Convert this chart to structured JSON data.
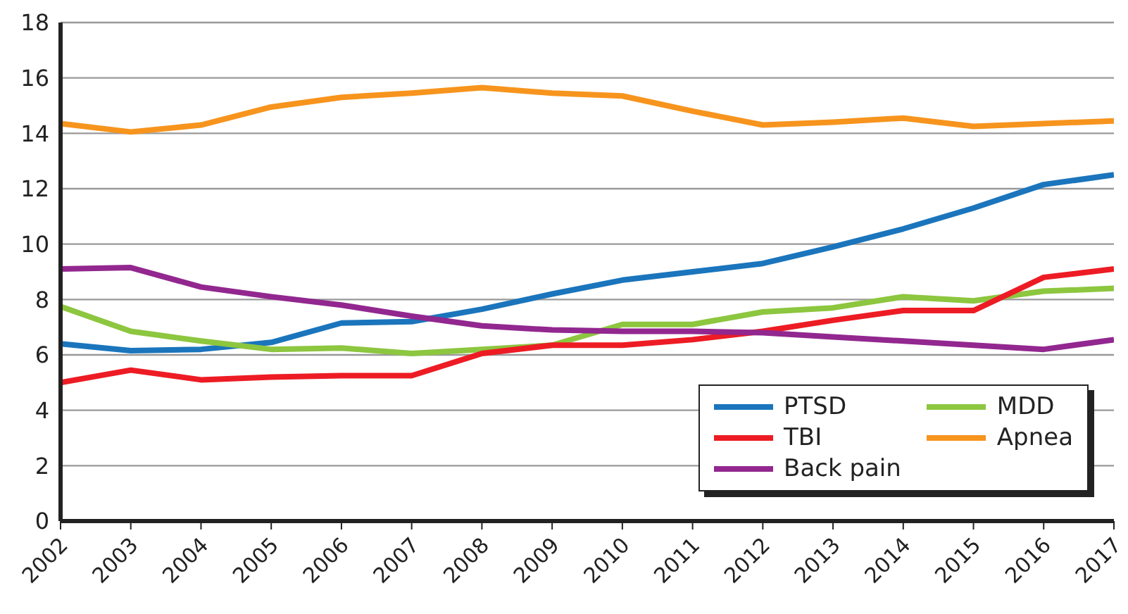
{
  "chart_data": {
    "type": "line",
    "x": [
      2002,
      2003,
      2004,
      2005,
      2006,
      2007,
      2008,
      2009,
      2010,
      2011,
      2012,
      2013,
      2014,
      2015,
      2016,
      2017
    ],
    "xlim": [
      2002,
      2017
    ],
    "xticks": [
      2002,
      2003,
      2004,
      2005,
      2006,
      2007,
      2008,
      2009,
      2010,
      2011,
      2012,
      2013,
      2014,
      2015,
      2016,
      2017
    ],
    "ylim": [
      0,
      18
    ],
    "yticks": [
      0,
      2,
      4,
      6,
      8,
      10,
      12,
      14,
      16,
      18
    ],
    "grid": "y",
    "legend": "bottom right",
    "marker": "none",
    "line_style": "solid",
    "series": [
      {
        "name": "PTSD",
        "color": "#1a75bc",
        "values": [
          6.4,
          6.15,
          6.2,
          6.45,
          7.15,
          7.2,
          7.65,
          8.2,
          8.7,
          9.0,
          9.3,
          9.9,
          10.55,
          11.3,
          12.15,
          12.5
        ]
      },
      {
        "name": "MDD",
        "color": "#8dc63f",
        "values": [
          7.75,
          6.85,
          6.5,
          6.2,
          6.25,
          6.05,
          6.2,
          6.35,
          7.1,
          7.1,
          7.55,
          7.7,
          8.1,
          7.95,
          8.3,
          8.4
        ]
      },
      {
        "name": "TBI",
        "color": "#ed1c24",
        "values": [
          5.0,
          5.45,
          5.1,
          5.2,
          5.25,
          5.25,
          6.05,
          6.35,
          6.35,
          6.55,
          6.85,
          7.25,
          7.6,
          7.6,
          8.8,
          9.1
        ]
      },
      {
        "name": "Apnea",
        "color": "#f7941d",
        "values": [
          14.35,
          14.05,
          14.3,
          14.95,
          15.3,
          15.45,
          15.65,
          15.45,
          15.35,
          14.8,
          14.3,
          14.4,
          14.55,
          14.25,
          14.35,
          14.45
        ]
      },
      {
        "name": "Back pain",
        "color": "#92278f",
        "values": [
          9.1,
          9.15,
          8.45,
          8.1,
          7.8,
          7.4,
          7.05,
          6.9,
          6.85,
          6.85,
          6.8,
          6.65,
          6.5,
          6.35,
          6.2,
          6.55
        ]
      }
    ]
  }
}
